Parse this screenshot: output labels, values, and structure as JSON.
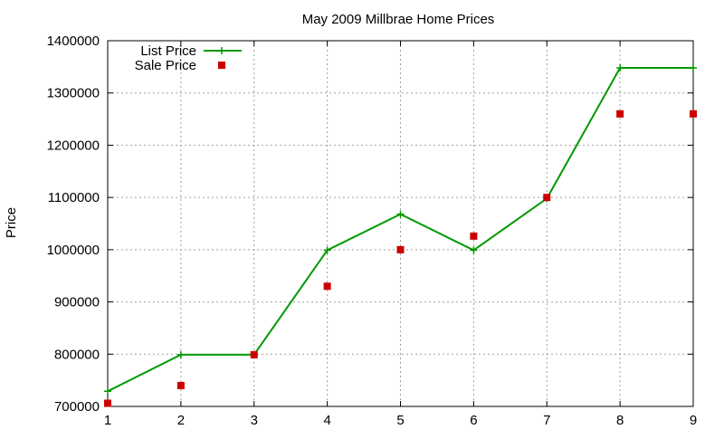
{
  "chart_data": {
    "type": "line",
    "title": "May 2009 Millbrae Home Prices",
    "xlabel": "",
    "ylabel": "Price",
    "xlim": [
      1,
      9
    ],
    "ylim": [
      700000,
      1400000
    ],
    "x_ticks": [
      1,
      2,
      3,
      4,
      5,
      6,
      7,
      8,
      9
    ],
    "y_ticks": [
      700000,
      800000,
      900000,
      1000000,
      1100000,
      1200000,
      1300000,
      1400000
    ],
    "grid": true,
    "legend_position": "top-left",
    "series": [
      {
        "name": "List Price",
        "style": "line-with-plus-markers",
        "color": "#009900",
        "x": [
          1,
          2,
          3,
          4,
          5,
          6,
          7,
          8,
          9
        ],
        "values": [
          729000,
          799000,
          799000,
          999000,
          1068000,
          999000,
          1098000,
          1348000,
          1348000
        ]
      },
      {
        "name": "Sale Price",
        "style": "square-markers",
        "color": "#cc0000",
        "x": [
          1,
          2,
          3,
          4,
          5,
          6,
          7,
          8,
          9
        ],
        "values": [
          706000,
          740000,
          799000,
          930000,
          1000000,
          1026000,
          1100000,
          1260000,
          1260000
        ]
      }
    ]
  }
}
